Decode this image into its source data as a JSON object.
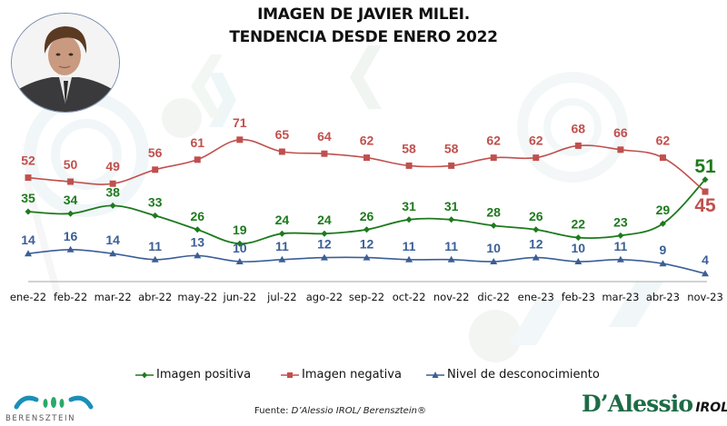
{
  "title_line1": "IMAGEN DE JAVIER MILEI.",
  "title_line2": "TENDENCIA DESDE ENERO 2022",
  "photo_alt": "Javier Milei portrait",
  "legend": {
    "positive": "Imagen positiva",
    "negative": "Imagen negativa",
    "unknown": "Nivel de desconocimiento"
  },
  "source": {
    "prefix": "Fuente: ",
    "text": "D’Alessio IROL/ Berensztein®"
  },
  "logos": {
    "berensztein": "BERENSZTEIN",
    "dalessio": "D’Alessio",
    "irol": "IROL"
  },
  "colors": {
    "positive": "#1d7a1d",
    "negative": "#c0504d",
    "unknown": "#3b5e96"
  },
  "chart_data": {
    "type": "line",
    "title": "IMAGEN DE JAVIER MILEI. TENDENCIA DESDE ENERO 2022",
    "xlabel": "",
    "ylabel": "",
    "ylim": [
      0,
      80
    ],
    "grid": false,
    "legend_position": "bottom",
    "categories": [
      "ene-22",
      "feb-22",
      "mar-22",
      "abr-22",
      "may-22",
      "jun-22",
      "jul-22",
      "ago-22",
      "sep-22",
      "oct-22",
      "nov-22",
      "dic-22",
      "ene-23",
      "feb-23",
      "mar-23",
      "abr-23",
      "nov-23"
    ],
    "series": [
      {
        "name": "Imagen positiva",
        "key": "positive",
        "marker": "diamond",
        "values": [
          35,
          34,
          38,
          33,
          26,
          19,
          24,
          24,
          26,
          31,
          31,
          28,
          26,
          22,
          23,
          29,
          51
        ]
      },
      {
        "name": "Imagen negativa",
        "key": "negative",
        "marker": "square",
        "values": [
          52,
          50,
          49,
          56,
          61,
          71,
          65,
          64,
          62,
          58,
          58,
          62,
          62,
          68,
          66,
          62,
          45
        ]
      },
      {
        "name": "Nivel de desconocimiento",
        "key": "unknown",
        "marker": "triangle",
        "values": [
          14,
          16,
          14,
          11,
          13,
          10,
          11,
          12,
          12,
          11,
          11,
          10,
          12,
          10,
          11,
          9,
          4
        ]
      }
    ]
  }
}
